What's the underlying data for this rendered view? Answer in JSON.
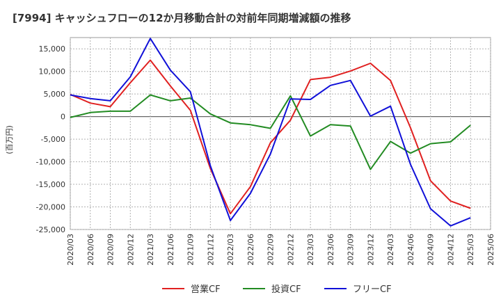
{
  "chart_data": {
    "type": "line",
    "title": "[7994]  キャッシュフローの12か月移動合計の対前年同期増減額の推移",
    "ylabel": "(百万円)",
    "xlabel": "",
    "ylim": [
      -25000,
      17500
    ],
    "yticks": [
      15000,
      10000,
      5000,
      0,
      -5000,
      -10000,
      -15000,
      -20000,
      -25000
    ],
    "ytick_labels": [
      "15,000",
      "10,000",
      "5,000",
      "0",
      "-5,000",
      "-10,000",
      "-15,000",
      "-20,000",
      "-25,000"
    ],
    "categories": [
      "2020/03",
      "2020/06",
      "2020/09",
      "2020/12",
      "2021/03",
      "2021/06",
      "2021/09",
      "2021/12",
      "2022/03",
      "2022/06",
      "2022/09",
      "2022/12",
      "2023/03",
      "2023/06",
      "2023/09",
      "2023/12",
      "2024/03",
      "2024/06",
      "2024/09",
      "2024/12",
      "2025/03",
      "2025/06"
    ],
    "grid": true,
    "legend_position": "bottom",
    "series": [
      {
        "name": "営業CF",
        "color": "#e02020",
        "values": [
          4900,
          3000,
          2200,
          7500,
          12500,
          6800,
          1400,
          -11500,
          -21500,
          -15500,
          -5800,
          -800,
          8200,
          8700,
          10100,
          11800,
          8000,
          -2500,
          -14200,
          -18700,
          -20300,
          null
        ]
      },
      {
        "name": "投資CF",
        "color": "#228b22",
        "values": [
          -200,
          900,
          1200,
          1200,
          4800,
          3500,
          4100,
          600,
          -1400,
          -1800,
          -2600,
          4600,
          -4300,
          -1800,
          -2100,
          -11700,
          -5500,
          -8100,
          -6000,
          -5600,
          -1900,
          null
        ]
      },
      {
        "name": "フリーCF",
        "color": "#1010d8",
        "values": [
          4800,
          4000,
          3500,
          8800,
          17300,
          10300,
          5500,
          -10900,
          -23000,
          -17000,
          -8300,
          3900,
          3800,
          6900,
          8000,
          100,
          2300,
          -10600,
          -20400,
          -24200,
          -22400,
          null
        ]
      }
    ]
  }
}
